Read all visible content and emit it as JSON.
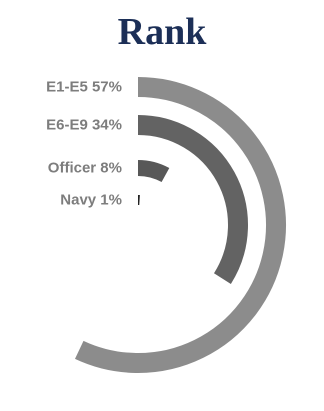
{
  "chart_data": {
    "type": "radial-bar",
    "title": "Rank",
    "categories": [
      "E1-E5",
      "E6-E9",
      "Officer",
      "Navy"
    ],
    "values": [
      57,
      34,
      8,
      1
    ],
    "value_labels": [
      "E1-E5 57%",
      "E6-E9 34%",
      "Officer 8%",
      "Navy 1%"
    ],
    "unit": "%",
    "scale_max": 100,
    "legend": "none",
    "grid": false,
    "colors": [
      "#8c8c8c",
      "#636363",
      "#585858",
      "#222222"
    ]
  }
}
